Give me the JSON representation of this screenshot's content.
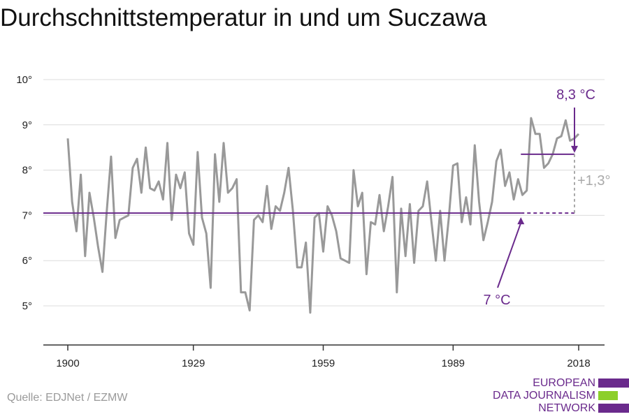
{
  "title": "Durchschnittstemperatur in und um Suczawa",
  "source": "Quelle: EDJNet / EZMW",
  "logo": {
    "lines": [
      "EUROPEAN",
      "DATA JOURNALISM",
      "NETWORK"
    ],
    "colors": [
      "#6a2a8c",
      "#8ccf2a",
      "#6a2a8c"
    ]
  },
  "chart_data": {
    "type": "line",
    "xlim": [
      1900,
      2018
    ],
    "ylim": [
      4.1,
      10.2
    ],
    "x_ticks": [
      1900,
      1929,
      1959,
      1989,
      2018
    ],
    "x_tick_labels": [
      "1900",
      "1929",
      "1959",
      "1989",
      "2018"
    ],
    "y_ticks": [
      5,
      6,
      7,
      8,
      9,
      10
    ],
    "y_tick_labels": [
      "5°",
      "6°",
      "7°",
      "8°",
      "9°",
      "10°"
    ],
    "grid": true,
    "series_color": "#999999",
    "accent_color": "#6a2a8c",
    "grey_annotation_color": "#a9a9a9",
    "x": [
      1900,
      1901,
      1902,
      1903,
      1904,
      1905,
      1906,
      1907,
      1908,
      1909,
      1910,
      1911,
      1912,
      1913,
      1914,
      1915,
      1916,
      1917,
      1918,
      1919,
      1920,
      1921,
      1922,
      1923,
      1924,
      1925,
      1926,
      1927,
      1928,
      1929,
      1930,
      1931,
      1932,
      1933,
      1934,
      1935,
      1936,
      1937,
      1938,
      1939,
      1940,
      1941,
      1942,
      1943,
      1944,
      1945,
      1946,
      1947,
      1948,
      1949,
      1950,
      1951,
      1952,
      1953,
      1954,
      1955,
      1956,
      1957,
      1958,
      1959,
      1960,
      1961,
      1962,
      1963,
      1964,
      1965,
      1966,
      1967,
      1968,
      1969,
      1970,
      1971,
      1972,
      1973,
      1974,
      1975,
      1976,
      1977,
      1978,
      1979,
      1980,
      1981,
      1982,
      1983,
      1984,
      1985,
      1986,
      1987,
      1988,
      1989,
      1990,
      1991,
      1992,
      1993,
      1994,
      1995,
      1996,
      1997,
      1998,
      1999,
      2000,
      2001,
      2002,
      2003,
      2004,
      2005,
      2006,
      2007,
      2008,
      2009,
      2010,
      2011,
      2012,
      2013,
      2014,
      2015,
      2016,
      2017,
      2018
    ],
    "values": [
      8.7,
      7.3,
      6.65,
      7.9,
      6.1,
      7.5,
      6.95,
      6.3,
      5.75,
      7.1,
      8.3,
      6.5,
      6.9,
      6.95,
      7.0,
      8.05,
      8.25,
      7.5,
      8.5,
      7.6,
      7.55,
      7.75,
      7.35,
      8.6,
      6.9,
      7.9,
      7.6,
      7.95,
      6.6,
      6.35,
      8.4,
      6.95,
      6.6,
      5.4,
      8.35,
      7.3,
      8.6,
      7.5,
      7.6,
      7.8,
      5.3,
      5.3,
      4.9,
      6.9,
      7.0,
      6.85,
      7.65,
      6.7,
      7.2,
      7.1,
      7.5,
      8.05,
      7.1,
      5.85,
      5.85,
      6.4,
      4.85,
      6.95,
      7.05,
      6.2,
      7.2,
      7.0,
      6.65,
      6.05,
      6.0,
      5.95,
      8.0,
      7.2,
      7.5,
      5.7,
      6.85,
      6.8,
      7.45,
      6.65,
      7.2,
      7.85,
      5.3,
      7.15,
      6.1,
      7.25,
      5.95,
      7.1,
      7.2,
      7.75,
      6.85,
      6.0,
      7.1,
      6.0,
      6.95,
      8.1,
      8.15,
      6.85,
      7.4,
      6.8,
      8.55,
      7.3,
      6.45,
      6.85,
      7.3,
      8.2,
      8.45,
      7.65,
      7.95,
      7.35,
      7.8,
      7.45,
      7.55,
      9.15,
      8.8,
      8.8,
      8.05,
      8.15,
      8.35,
      8.7,
      8.75,
      9.1,
      8.65,
      8.7,
      8.8
    ],
    "baseline": {
      "value": 7.05,
      "x_start": 1900,
      "x_end": 2018,
      "solid_until": 2004
    },
    "recent_mean": {
      "value": 8.35,
      "x_start": 2004,
      "x_end": 2018
    },
    "annotations": {
      "recent_label": "8,3 °C",
      "baseline_label": "7 °C",
      "difference_label": "+1,3°"
    }
  }
}
